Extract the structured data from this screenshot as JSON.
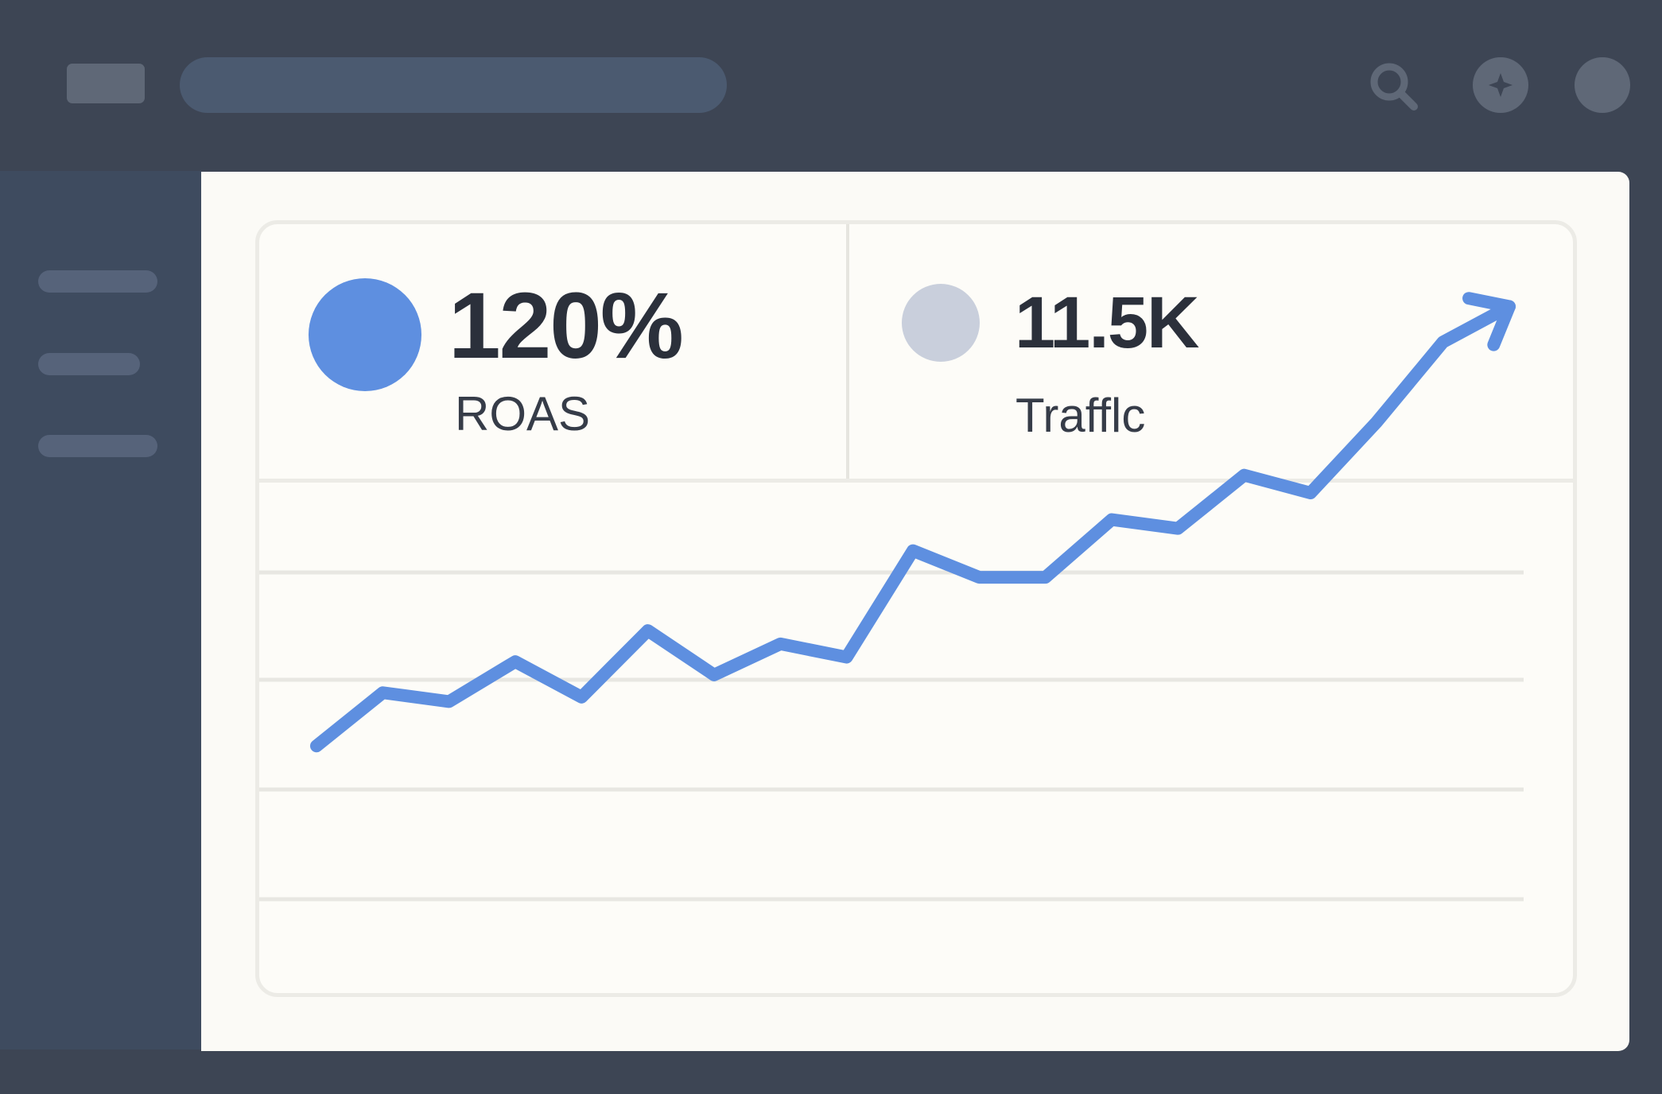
{
  "metrics": [
    {
      "value": "120%",
      "label": "ROAS",
      "color": "#5e8fe0"
    },
    {
      "value": "11.5K",
      "label": "Trafflc",
      "color": "#c9cfdc"
    }
  ],
  "chart_data": {
    "type": "line",
    "title": "",
    "xlabel": "",
    "ylabel": "",
    "x": [
      1,
      2,
      3,
      4,
      5,
      6,
      7,
      8,
      9,
      10,
      11,
      12,
      13,
      14,
      15,
      16,
      17,
      18,
      19
    ],
    "series": [
      {
        "values": [
          1.5,
          2.7,
          2.5,
          3.4,
          2.6,
          4.1,
          3.1,
          3.8,
          3.5,
          5.9,
          5.3,
          5.3,
          6.6,
          6.4,
          7.6,
          7.2,
          8.8,
          10.6,
          11.4
        ]
      }
    ],
    "ylim": [
      0,
      12
    ],
    "grid": true,
    "trend_arrow": true,
    "line_color": "#5e8fe0"
  },
  "icons": {
    "search": "search-icon",
    "star": "star-icon",
    "avatar": "avatar"
  }
}
